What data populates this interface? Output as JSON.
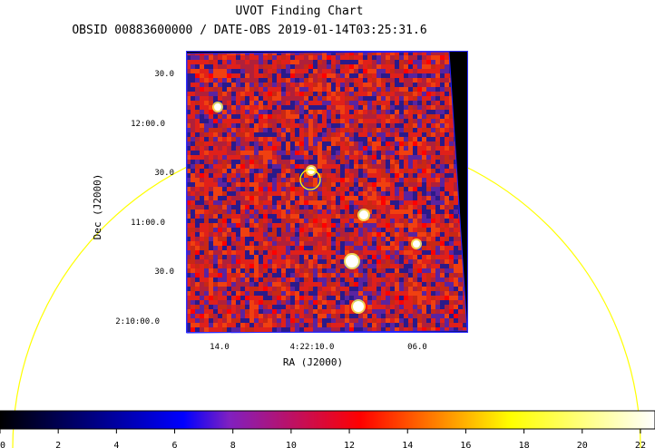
{
  "chart_data": {
    "type": "heatmap",
    "title": "UVOT Finding Chart",
    "subtitle": "OBSID 00883600000 / DATE-OBS 2019-01-14T03:25:31.6",
    "xlabel": "RA (J2000)",
    "ylabel": "Dec (J2000)",
    "x_ticks": [
      "14.0",
      "4:22:10.0",
      "06.0"
    ],
    "y_ticks": [
      "30.0",
      "12:00.0",
      "30.0",
      "11:00.0",
      "30.0",
      "2:10:00.0"
    ],
    "colorbar": {
      "ticks": [
        "0",
        "2",
        "4",
        "6",
        "8",
        "10",
        "12",
        "14",
        "16",
        "18",
        "20",
        "22"
      ],
      "range": [
        0,
        22.5
      ],
      "colormap": [
        "#000000",
        "#0000ff",
        "#ff0000",
        "#ffff00",
        "#ffffff"
      ]
    },
    "marker_color": "#ffff00",
    "frame_color": "#2020ff",
    "background_color": "#ff0000",
    "noise_colors": [
      "#2a1a8a",
      "#5a24a0",
      "#b0203a",
      "#e0201a",
      "#f04010",
      "#c82814"
    ],
    "sources_color": "#ffffff"
  }
}
